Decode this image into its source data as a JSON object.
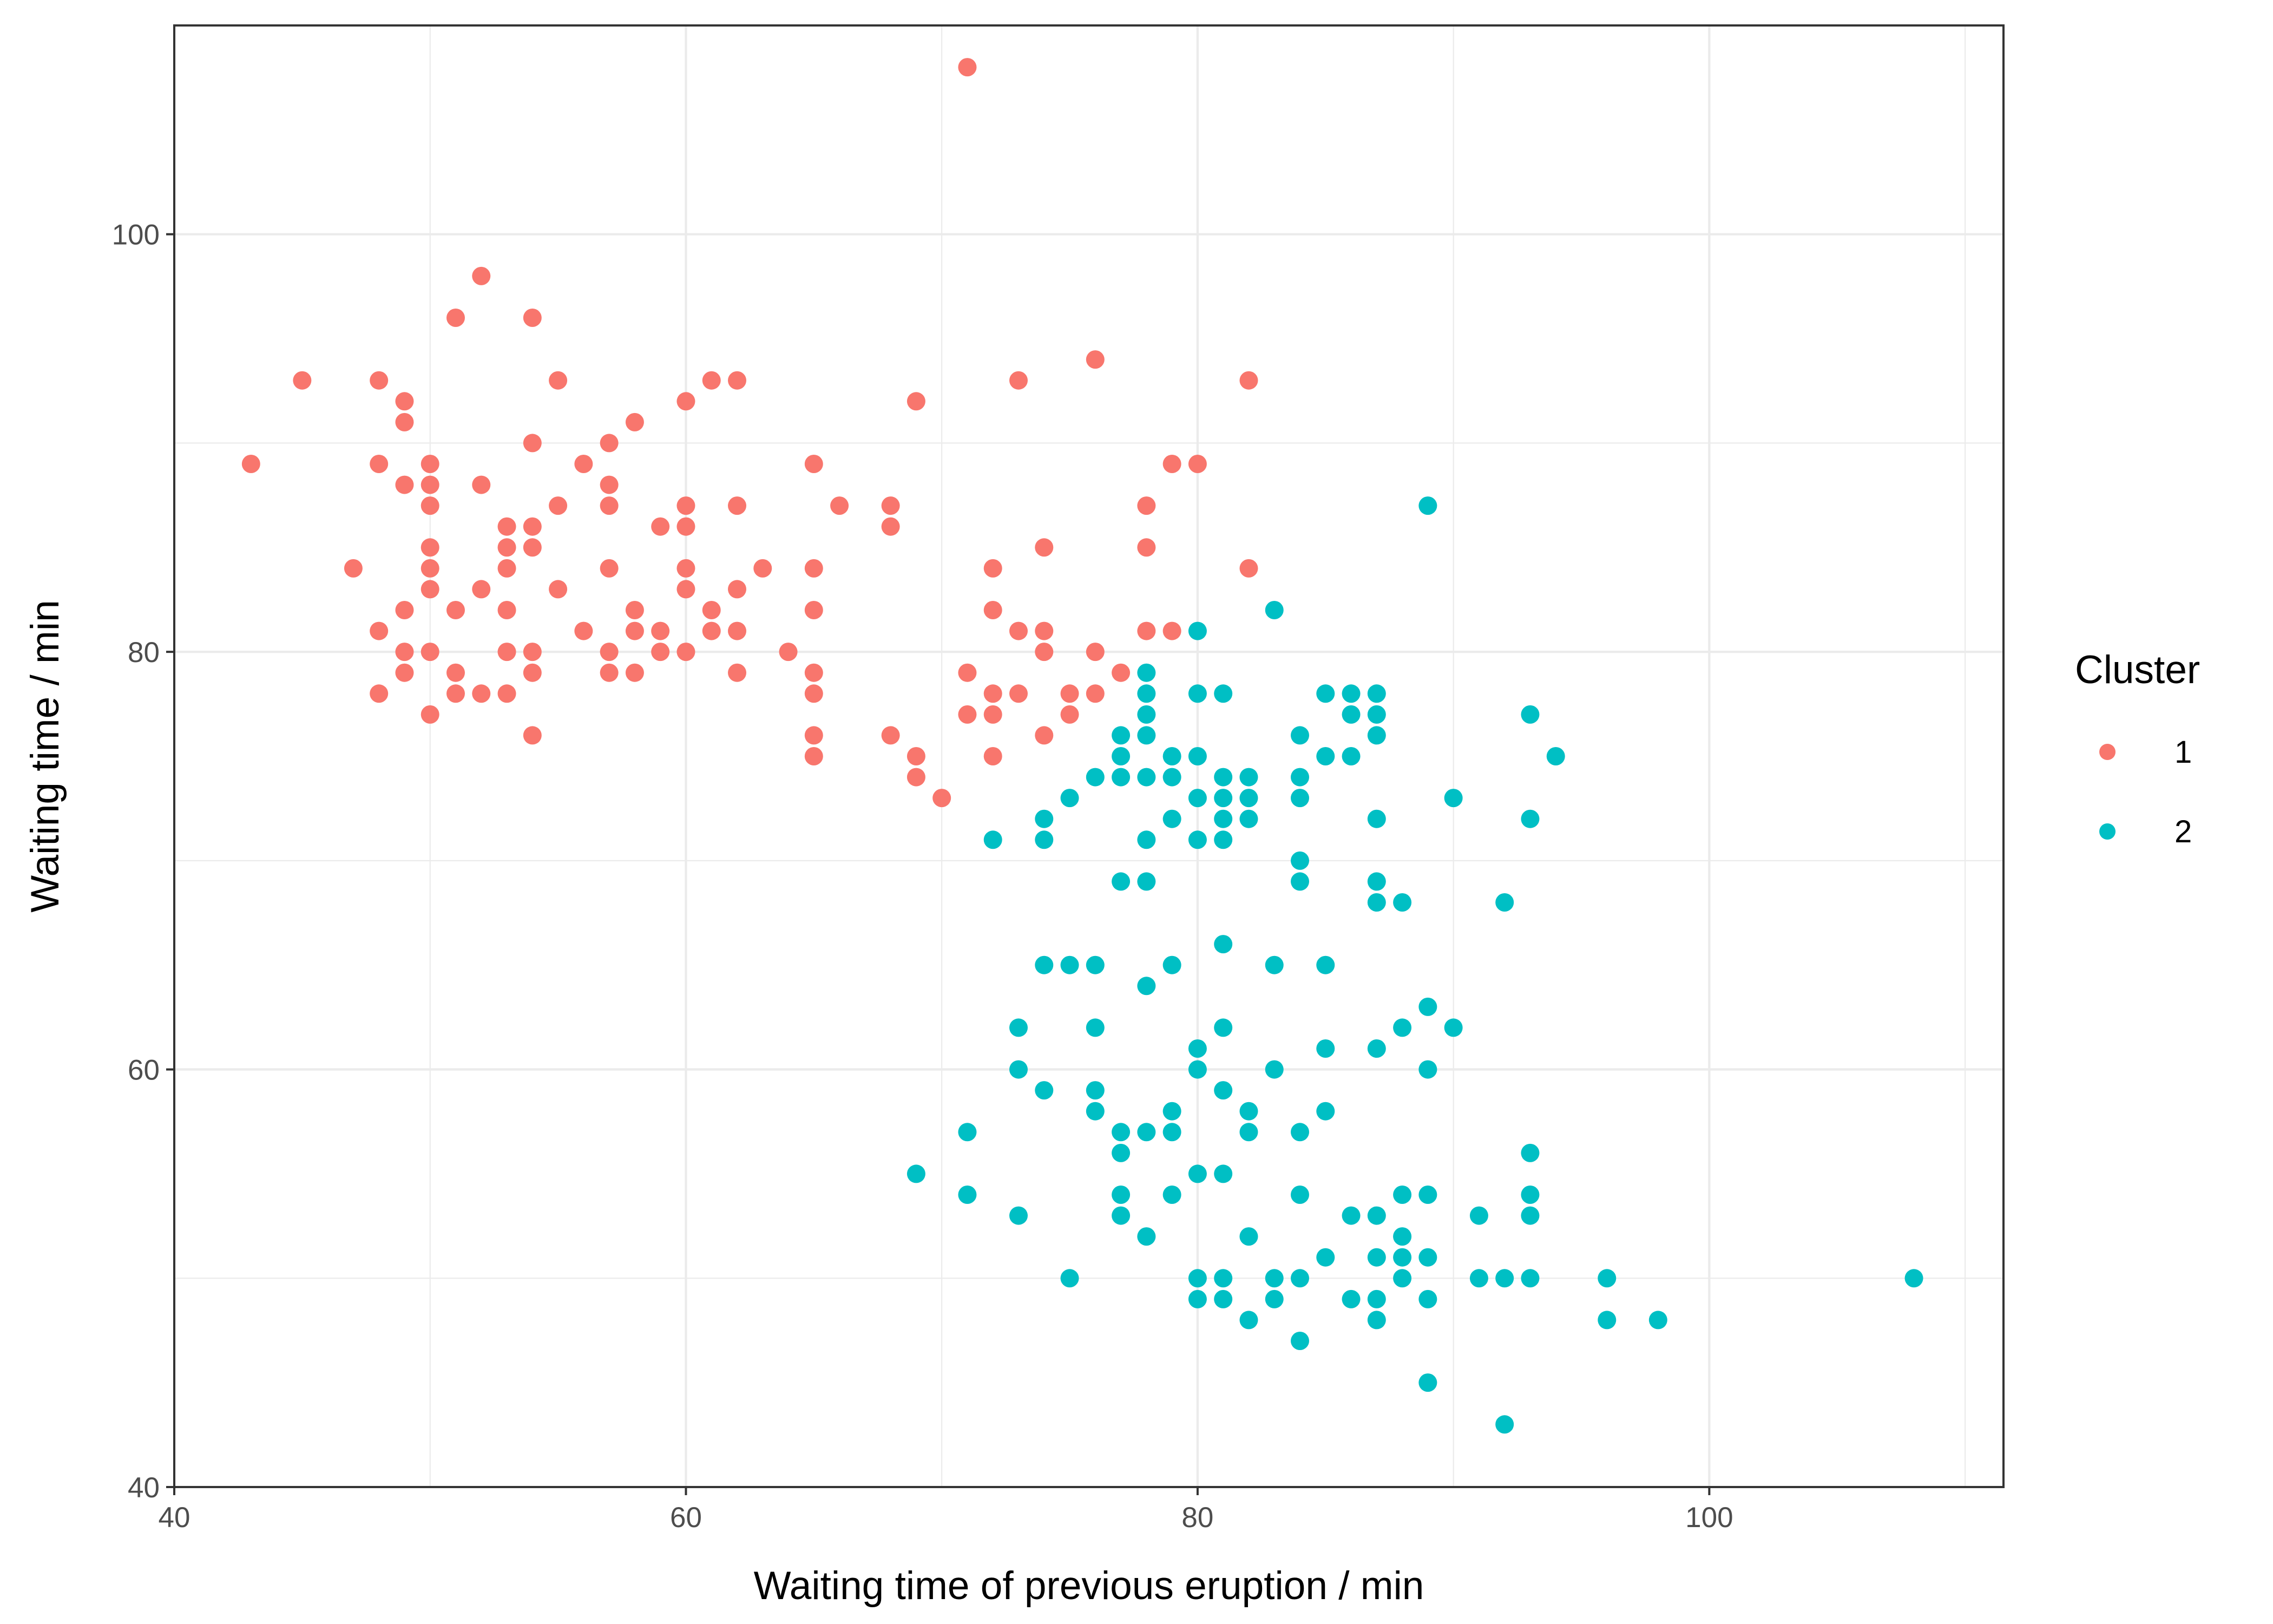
{
  "chart_data": {
    "type": "scatter",
    "title": "",
    "xlabel": "Waiting time of previous eruption / min",
    "ylabel": "Waiting time / min",
    "xlim": [
      40,
      111.5
    ],
    "ylim": [
      40,
      110
    ],
    "x_ticks": [
      "40",
      "60",
      "80",
      "100"
    ],
    "y_ticks": [
      "40",
      "60",
      "80",
      "100"
    ],
    "grid": true,
    "legend": {
      "title": "Cluster",
      "position": "right"
    },
    "series": [
      {
        "name": "1",
        "color": "#F8766D",
        "points": [
          [
            43,
            89
          ],
          [
            45,
            93
          ],
          [
            47,
            84
          ],
          [
            48,
            93
          ],
          [
            48,
            89
          ],
          [
            48,
            81
          ],
          [
            48,
            78
          ],
          [
            49,
            92
          ],
          [
            49,
            91
          ],
          [
            49,
            88
          ],
          [
            49,
            82
          ],
          [
            49,
            80
          ],
          [
            49,
            79
          ],
          [
            50,
            89
          ],
          [
            50,
            88
          ],
          [
            50,
            87
          ],
          [
            50,
            85
          ],
          [
            50,
            84
          ],
          [
            50,
            83
          ],
          [
            50,
            80
          ],
          [
            50,
            77
          ],
          [
            51,
            96
          ],
          [
            51,
            82
          ],
          [
            51,
            79
          ],
          [
            51,
            78
          ],
          [
            52,
            98
          ],
          [
            52,
            88
          ],
          [
            52,
            83
          ],
          [
            52,
            78
          ],
          [
            53,
            86
          ],
          [
            53,
            85
          ],
          [
            53,
            84
          ],
          [
            53,
            82
          ],
          [
            53,
            80
          ],
          [
            53,
            78
          ],
          [
            54,
            96
          ],
          [
            54,
            90
          ],
          [
            54,
            86
          ],
          [
            54,
            85
          ],
          [
            54,
            80
          ],
          [
            54,
            79
          ],
          [
            54,
            76
          ],
          [
            55,
            93
          ],
          [
            55,
            87
          ],
          [
            55,
            83
          ],
          [
            56,
            89
          ],
          [
            56,
            81
          ],
          [
            57,
            90
          ],
          [
            57,
            88
          ],
          [
            57,
            87
          ],
          [
            57,
            84
          ],
          [
            57,
            80
          ],
          [
            57,
            79
          ],
          [
            58,
            91
          ],
          [
            58,
            82
          ],
          [
            58,
            81
          ],
          [
            58,
            79
          ],
          [
            59,
            86
          ],
          [
            59,
            81
          ],
          [
            59,
            80
          ],
          [
            60,
            92
          ],
          [
            60,
            87
          ],
          [
            60,
            86
          ],
          [
            60,
            84
          ],
          [
            60,
            83
          ],
          [
            60,
            80
          ],
          [
            61,
            93
          ],
          [
            61,
            82
          ],
          [
            61,
            81
          ],
          [
            62,
            93
          ],
          [
            62,
            87
          ],
          [
            62,
            83
          ],
          [
            62,
            81
          ],
          [
            62,
            79
          ],
          [
            63,
            84
          ],
          [
            64,
            80
          ],
          [
            65,
            89
          ],
          [
            65,
            84
          ],
          [
            65,
            82
          ],
          [
            65,
            79
          ],
          [
            65,
            78
          ],
          [
            65,
            76
          ],
          [
            65,
            75
          ],
          [
            66,
            87
          ],
          [
            68,
            87
          ],
          [
            68,
            86
          ],
          [
            68,
            76
          ],
          [
            69,
            92
          ],
          [
            69,
            75
          ],
          [
            69,
            74
          ],
          [
            70,
            73
          ],
          [
            71,
            108
          ],
          [
            71,
            79
          ],
          [
            71,
            77
          ],
          [
            72,
            84
          ],
          [
            72,
            82
          ],
          [
            72,
            78
          ],
          [
            72,
            77
          ],
          [
            72,
            75
          ],
          [
            73,
            93
          ],
          [
            73,
            81
          ],
          [
            73,
            78
          ],
          [
            74,
            85
          ],
          [
            74,
            81
          ],
          [
            74,
            80
          ],
          [
            74,
            76
          ],
          [
            75,
            78
          ],
          [
            75,
            77
          ],
          [
            76,
            94
          ],
          [
            76,
            80
          ],
          [
            76,
            78
          ],
          [
            77,
            79
          ],
          [
            78,
            87
          ],
          [
            78,
            85
          ],
          [
            78,
            81
          ],
          [
            79,
            89
          ],
          [
            79,
            81
          ],
          [
            80,
            89
          ],
          [
            82,
            93
          ],
          [
            82,
            84
          ]
        ]
      },
      {
        "name": "2",
        "color": "#00BFC4",
        "points": [
          [
            69,
            55
          ],
          [
            71,
            57
          ],
          [
            71,
            54
          ],
          [
            72,
            71
          ],
          [
            73,
            62
          ],
          [
            73,
            60
          ],
          [
            73,
            53
          ],
          [
            74,
            72
          ],
          [
            74,
            71
          ],
          [
            74,
            65
          ],
          [
            74,
            59
          ],
          [
            75,
            73
          ],
          [
            75,
            65
          ],
          [
            75,
            50
          ],
          [
            76,
            74
          ],
          [
            76,
            65
          ],
          [
            76,
            62
          ],
          [
            76,
            59
          ],
          [
            76,
            58
          ],
          [
            77,
            76
          ],
          [
            77,
            75
          ],
          [
            77,
            74
          ],
          [
            77,
            69
          ],
          [
            77,
            57
          ],
          [
            77,
            56
          ],
          [
            77,
            54
          ],
          [
            77,
            53
          ],
          [
            78,
            79
          ],
          [
            78,
            78
          ],
          [
            78,
            77
          ],
          [
            78,
            76
          ],
          [
            78,
            74
          ],
          [
            78,
            71
          ],
          [
            78,
            69
          ],
          [
            78,
            64
          ],
          [
            78,
            57
          ],
          [
            78,
            52
          ],
          [
            79,
            75
          ],
          [
            79,
            74
          ],
          [
            79,
            72
          ],
          [
            79,
            65
          ],
          [
            79,
            58
          ],
          [
            79,
            57
          ],
          [
            79,
            54
          ],
          [
            80,
            81
          ],
          [
            80,
            78
          ],
          [
            80,
            75
          ],
          [
            80,
            73
          ],
          [
            80,
            71
          ],
          [
            80,
            61
          ],
          [
            80,
            60
          ],
          [
            80,
            55
          ],
          [
            80,
            50
          ],
          [
            80,
            49
          ],
          [
            81,
            78
          ],
          [
            81,
            74
          ],
          [
            81,
            73
          ],
          [
            81,
            72
          ],
          [
            81,
            71
          ],
          [
            81,
            66
          ],
          [
            81,
            62
          ],
          [
            81,
            59
          ],
          [
            81,
            55
          ],
          [
            81,
            50
          ],
          [
            81,
            49
          ],
          [
            82,
            74
          ],
          [
            82,
            73
          ],
          [
            82,
            72
          ],
          [
            82,
            58
          ],
          [
            82,
            57
          ],
          [
            82,
            52
          ],
          [
            82,
            48
          ],
          [
            83,
            82
          ],
          [
            83,
            65
          ],
          [
            83,
            60
          ],
          [
            83,
            50
          ],
          [
            83,
            49
          ],
          [
            84,
            76
          ],
          [
            84,
            74
          ],
          [
            84,
            73
          ],
          [
            84,
            70
          ],
          [
            84,
            69
          ],
          [
            84,
            57
          ],
          [
            84,
            54
          ],
          [
            84,
            50
          ],
          [
            84,
            47
          ],
          [
            85,
            78
          ],
          [
            85,
            75
          ],
          [
            85,
            65
          ],
          [
            85,
            61
          ],
          [
            85,
            58
          ],
          [
            85,
            51
          ],
          [
            86,
            78
          ],
          [
            86,
            77
          ],
          [
            86,
            75
          ],
          [
            86,
            53
          ],
          [
            86,
            49
          ],
          [
            87,
            78
          ],
          [
            87,
            77
          ],
          [
            87,
            76
          ],
          [
            87,
            72
          ],
          [
            87,
            69
          ],
          [
            87,
            68
          ],
          [
            87,
            61
          ],
          [
            87,
            53
          ],
          [
            87,
            51
          ],
          [
            87,
            49
          ],
          [
            87,
            48
          ],
          [
            88,
            68
          ],
          [
            88,
            62
          ],
          [
            88,
            54
          ],
          [
            88,
            52
          ],
          [
            88,
            51
          ],
          [
            88,
            50
          ],
          [
            89,
            87
          ],
          [
            89,
            63
          ],
          [
            89,
            60
          ],
          [
            89,
            54
          ],
          [
            89,
            51
          ],
          [
            89,
            49
          ],
          [
            89,
            45
          ],
          [
            90,
            73
          ],
          [
            90,
            62
          ],
          [
            91,
            53
          ],
          [
            91,
            50
          ],
          [
            92,
            68
          ],
          [
            92,
            50
          ],
          [
            92,
            43
          ],
          [
            93,
            77
          ],
          [
            93,
            72
          ],
          [
            93,
            56
          ],
          [
            93,
            54
          ],
          [
            93,
            53
          ],
          [
            93,
            50
          ],
          [
            94,
            75
          ],
          [
            96,
            50
          ],
          [
            96,
            48
          ],
          [
            98,
            48
          ],
          [
            108,
            50
          ]
        ]
      }
    ]
  }
}
